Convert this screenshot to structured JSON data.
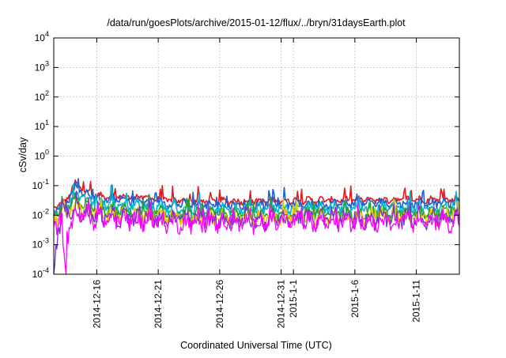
{
  "chart_data": {
    "type": "line",
    "title": "/data/run/goesPlots/archive/2015-01-12/flux/../bryn/31daysEarth.plot",
    "xlabel": "Coordinated Universal Time (UTC)",
    "ylabel": "cSv/day",
    "y_scale": "log",
    "ylim": [
      0.0001,
      10000
    ],
    "xlim": [
      "2014-12-12T12:00",
      "2015-01-14T12:00"
    ],
    "grid": true,
    "y_ticks": [
      {
        "base": "10",
        "exp": "-4",
        "value": 0.0001
      },
      {
        "base": "10",
        "exp": "-3",
        "value": 0.001
      },
      {
        "base": "10",
        "exp": "-2",
        "value": 0.01
      },
      {
        "base": "10",
        "exp": "-1",
        "value": 0.1
      },
      {
        "base": "10",
        "exp": "0",
        "value": 1
      },
      {
        "base": "10",
        "exp": "1",
        "value": 10
      },
      {
        "base": "10",
        "exp": "2",
        "value": 100
      },
      {
        "base": "10",
        "exp": "3",
        "value": 1000
      },
      {
        "base": "10",
        "exp": "4",
        "value": 10000
      }
    ],
    "x_ticks": [
      {
        "date": "2014-12-16",
        "label": "2014-12-16"
      },
      {
        "date": "2014-12-21",
        "label": "2014-12-21"
      },
      {
        "date": "2014-12-26",
        "label": "2014-12-26"
      },
      {
        "date": "2014-12-31",
        "label": "2014-12-31"
      },
      {
        "date": "2015-01-01",
        "label": "2015-1-1"
      },
      {
        "date": "2015-01-06",
        "label": "2015-1-6"
      },
      {
        "date": "2015-01-11",
        "label": "2015-1-11"
      }
    ],
    "series": [
      {
        "color": "#e41a1c",
        "base": [
          [
            "2014-12-12T12:00",
            0.018
          ],
          [
            "2014-12-13T12:00",
            0.03
          ],
          [
            "2014-12-14T06:00",
            0.12
          ],
          [
            "2014-12-15T00:00",
            0.07
          ],
          [
            "2014-12-16T00:00",
            0.045
          ],
          [
            "2014-12-18T00:00",
            0.042
          ],
          [
            "2014-12-20T00:00",
            0.04
          ],
          [
            "2014-12-22T00:00",
            0.032
          ],
          [
            "2014-12-25T00:00",
            0.03
          ],
          [
            "2014-12-29T00:00",
            0.03
          ],
          [
            "2015-01-02T00:00",
            0.032
          ],
          [
            "2015-01-06T00:00",
            0.033
          ],
          [
            "2015-01-10T00:00",
            0.034
          ],
          [
            "2015-01-14T12:00",
            0.034
          ]
        ]
      },
      {
        "color": "#1f5fd0",
        "base": [
          [
            "2014-12-12T12:00",
            0.015
          ],
          [
            "2014-12-13T12:00",
            0.025
          ],
          [
            "2014-12-14T06:00",
            0.095
          ],
          [
            "2014-12-15T00:00",
            0.06
          ],
          [
            "2014-12-16T00:00",
            0.035
          ],
          [
            "2014-12-18T00:00",
            0.032
          ],
          [
            "2014-12-20T00:00",
            0.03
          ],
          [
            "2014-12-22T00:00",
            0.025
          ],
          [
            "2014-12-25T00:00",
            0.023
          ],
          [
            "2014-12-29T00:00",
            0.022
          ],
          [
            "2015-01-02T00:00",
            0.024
          ],
          [
            "2015-01-06T00:00",
            0.025
          ],
          [
            "2015-01-10T00:00",
            0.026
          ],
          [
            "2015-01-14T12:00",
            0.026
          ]
        ]
      },
      {
        "color": "#00b8c8",
        "base": [
          [
            "2014-12-12T12:00",
            0.012
          ],
          [
            "2014-12-13T12:00",
            0.02
          ],
          [
            "2014-12-14T06:00",
            0.05
          ],
          [
            "2014-12-15T00:00",
            0.035
          ],
          [
            "2014-12-16T00:00",
            0.025
          ],
          [
            "2014-12-18T00:00",
            0.022
          ],
          [
            "2014-12-20T00:00",
            0.02
          ],
          [
            "2014-12-22T00:00",
            0.017
          ],
          [
            "2014-12-25T00:00",
            0.016
          ],
          [
            "2014-12-29T00:00",
            0.016
          ],
          [
            "2015-01-02T00:00",
            0.017
          ],
          [
            "2015-01-06T00:00",
            0.018
          ],
          [
            "2015-01-10T00:00",
            0.018
          ],
          [
            "2015-01-14T12:00",
            0.018
          ]
        ]
      },
      {
        "color": "#2ca02c",
        "base": [
          [
            "2014-12-12T12:00",
            0.01
          ],
          [
            "2014-12-13T12:00",
            0.016
          ],
          [
            "2014-12-14T06:00",
            0.03
          ],
          [
            "2014-12-15T00:00",
            0.022
          ],
          [
            "2014-12-16T00:00",
            0.016
          ],
          [
            "2014-12-18T00:00",
            0.014
          ],
          [
            "2014-12-20T00:00",
            0.013
          ],
          [
            "2014-12-22T00:00",
            0.011
          ],
          [
            "2014-12-25T00:00",
            0.011
          ],
          [
            "2014-12-29T00:00",
            0.011
          ],
          [
            "2015-01-02T00:00",
            0.012
          ],
          [
            "2015-01-06T00:00",
            0.012
          ],
          [
            "2015-01-10T00:00",
            0.012
          ],
          [
            "2015-01-14T12:00",
            0.012
          ]
        ]
      },
      {
        "color": "#e6c800",
        "base": [
          [
            "2014-12-12T12:00",
            0.008
          ],
          [
            "2014-12-13T12:00",
            0.012
          ],
          [
            "2014-12-14T06:00",
            0.018
          ],
          [
            "2014-12-15T00:00",
            0.014
          ],
          [
            "2014-12-16T00:00",
            0.011
          ],
          [
            "2014-12-18T00:00",
            0.01
          ],
          [
            "2014-12-20T00:00",
            0.009
          ],
          [
            "2014-12-22T00:00",
            0.008
          ],
          [
            "2014-12-25T00:00",
            0.008
          ],
          [
            "2014-12-29T00:00",
            0.008
          ],
          [
            "2015-01-02T00:00",
            0.009
          ],
          [
            "2015-01-06T00:00",
            0.009
          ],
          [
            "2015-01-10T00:00",
            0.009
          ],
          [
            "2015-01-14T12:00",
            0.009
          ]
        ]
      },
      {
        "color": "#7b2fd0",
        "base": [
          [
            "2014-12-12T12:00",
            0.0001
          ],
          [
            "2014-12-12T20:00",
            0.002
          ],
          [
            "2014-12-13T06:00",
            0.01
          ],
          [
            "2014-12-14T06:00",
            0.018
          ],
          [
            "2014-12-15T00:00",
            0.012
          ],
          [
            "2014-12-16T00:00",
            0.009
          ],
          [
            "2014-12-18T00:00",
            0.008
          ],
          [
            "2014-12-20T00:00",
            0.0075
          ],
          [
            "2014-12-22T00:00",
            0.007
          ],
          [
            "2014-12-25T00:00",
            0.007
          ],
          [
            "2014-12-29T00:00",
            0.007
          ],
          [
            "2015-01-02T00:00",
            0.0072
          ],
          [
            "2015-01-06T00:00",
            0.0074
          ],
          [
            "2015-01-10T00:00",
            0.0075
          ],
          [
            "2015-01-14T12:00",
            0.0075
          ]
        ]
      },
      {
        "color": "#ff00ff",
        "base": [
          [
            "2014-12-12T12:00",
            0.004
          ],
          [
            "2014-12-13T00:00",
            0.008
          ],
          [
            "2014-12-13T12:00",
            0.0001
          ],
          [
            "2014-12-13T14:00",
            0.002
          ],
          [
            "2014-12-14T06:00",
            0.012
          ],
          [
            "2014-12-15T00:00",
            0.009
          ],
          [
            "2014-12-16T00:00",
            0.0075
          ],
          [
            "2014-12-18T00:00",
            0.007
          ],
          [
            "2014-12-20T00:00",
            0.0065
          ],
          [
            "2014-12-22T00:00",
            0.0055
          ],
          [
            "2014-12-25T00:00",
            0.0055
          ],
          [
            "2014-12-29T00:00",
            0.0055
          ],
          [
            "2015-01-02T00:00",
            0.006
          ],
          [
            "2015-01-06T00:00",
            0.006
          ],
          [
            "2015-01-10T00:00",
            0.006
          ],
          [
            "2015-01-14T12:00",
            0.006
          ]
        ]
      }
    ]
  }
}
